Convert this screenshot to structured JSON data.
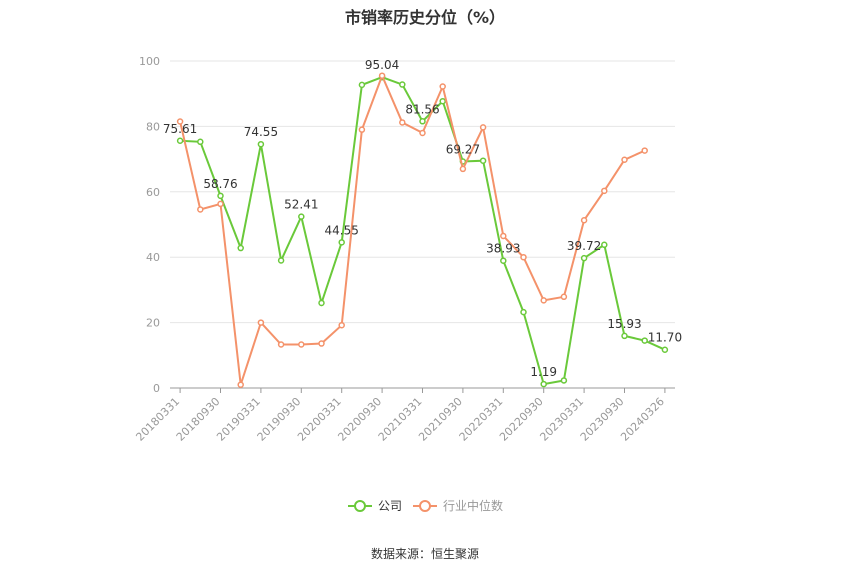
{
  "chart_data": {
    "type": "line",
    "title": "市销率历史分位（%）",
    "ylim": [
      0,
      100
    ],
    "yticks": [
      0,
      20,
      40,
      60,
      80,
      100
    ],
    "grid": true,
    "legend_position": "bottom",
    "x": [
      "20180331",
      "20180630",
      "20180930",
      "20181231",
      "20190331",
      "20190630",
      "20190930",
      "20191231",
      "20200331",
      "20200630",
      "20200930",
      "20201231",
      "20210331",
      "20210630",
      "20210930",
      "20211231",
      "20220331",
      "20220630",
      "20220930",
      "20221231",
      "20230331",
      "20230630",
      "20230930",
      "20231231",
      "20240326"
    ],
    "xtick_labels": [
      "20180331",
      "20180930",
      "20190331",
      "20190930",
      "20200331",
      "20200930",
      "20210331",
      "20210930",
      "20220331",
      "20220930",
      "20230331",
      "20230930",
      "20240326"
    ],
    "series": [
      {
        "name": "公司",
        "color": "#6ac93a",
        "values": [
          75.61,
          75.3,
          58.76,
          42.8,
          74.55,
          39.0,
          52.41,
          26.0,
          44.55,
          92.7,
          95.04,
          92.8,
          81.56,
          87.7,
          69.27,
          69.5,
          38.93,
          23.2,
          1.19,
          2.3,
          39.72,
          43.8,
          15.93,
          14.5,
          11.7
        ]
      },
      {
        "name": "行业中位数",
        "color": "#f4926a",
        "values": [
          81.5,
          54.6,
          56.3,
          1.0,
          20.0,
          13.3,
          13.3,
          13.6,
          19.2,
          79.0,
          95.5,
          81.2,
          78.0,
          92.2,
          67.0,
          79.7,
          46.5,
          40.0,
          26.8,
          27.9,
          51.3,
          60.3,
          69.8,
          72.6,
          null
        ]
      }
    ],
    "data_labels": [
      {
        "index": 0,
        "text": "75.61"
      },
      {
        "index": 2,
        "text": "58.76"
      },
      {
        "index": 4,
        "text": "74.55"
      },
      {
        "index": 6,
        "text": "52.41"
      },
      {
        "index": 8,
        "text": "44.55"
      },
      {
        "index": 10,
        "text": "95.04"
      },
      {
        "index": 12,
        "text": "81.56"
      },
      {
        "index": 14,
        "text": "69.27"
      },
      {
        "index": 16,
        "text": "38.93"
      },
      {
        "index": 18,
        "text": "1.19"
      },
      {
        "index": 20,
        "text": "39.72"
      },
      {
        "index": 22,
        "text": "15.93"
      },
      {
        "index": 24,
        "text": "11.70"
      }
    ]
  },
  "source_text": "数据来源：恒生聚源"
}
